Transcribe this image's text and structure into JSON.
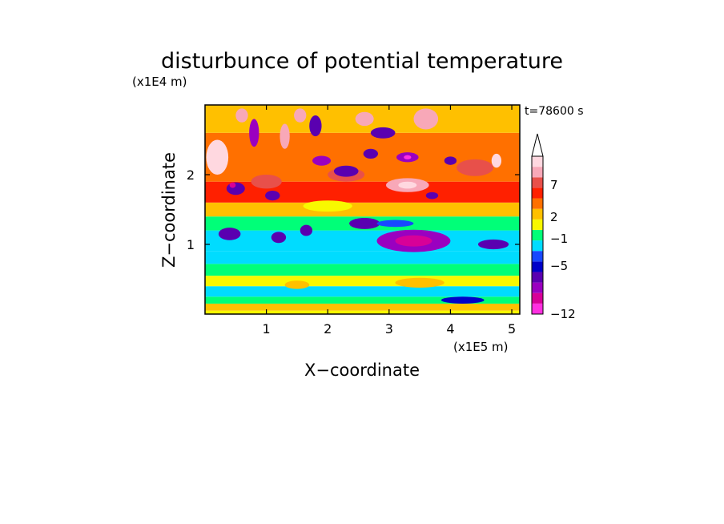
{
  "chart_data": {
    "type": "heatmap",
    "title": "disturbunce of potential temperature",
    "time_label": "t=78600 s",
    "xlabel": "X−coordinate",
    "ylabel": "Z−coordinate",
    "x_unit": "(x1E5 m)",
    "y_unit": "(x1E4 m)",
    "xlim": [
      0,
      5.13
    ],
    "ylim": [
      0,
      3.0
    ],
    "x_ticks": [
      "1",
      "2",
      "3",
      "4",
      "5"
    ],
    "y_ticks": [
      "1",
      "2"
    ],
    "colorbar": {
      "labels": [
        "7",
        "2",
        "−1",
        "−5",
        "−12"
      ],
      "colors": [
        "#ff30e0",
        "#d80098",
        "#9a00c0",
        "#5a00b0",
        "#0000c8",
        "#1848ff",
        "#00dcff",
        "#00ff78",
        "#f8f800",
        "#ffc000",
        "#ff7000",
        "#ff2000",
        "#e8504a",
        "#f8a8b8",
        "#ffd8e0"
      ],
      "extend": "max"
    },
    "bands": [
      {
        "z": [
          0.0,
          0.05
        ],
        "value": 1.0
      },
      {
        "z": [
          0.05,
          0.15
        ],
        "value": 2.0
      },
      {
        "z": [
          0.15,
          0.25
        ],
        "value": 0.0
      },
      {
        "z": [
          0.25,
          0.4
        ],
        "value": -1.5
      },
      {
        "z": [
          0.4,
          0.55
        ],
        "value": 1.0
      },
      {
        "z": [
          0.55,
          0.72
        ],
        "value": 0.0
      },
      {
        "z": [
          0.72,
          0.9
        ],
        "value": -1.0
      },
      {
        "z": [
          0.9,
          1.2
        ],
        "value": -1.5
      },
      {
        "z": [
          1.2,
          1.4
        ],
        "value": 0.0
      },
      {
        "z": [
          1.4,
          1.6
        ],
        "value": 2.0
      },
      {
        "z": [
          1.6,
          1.9
        ],
        "value": 3.5
      },
      {
        "z": [
          1.9,
          2.6
        ],
        "value": 3.0
      },
      {
        "z": [
          2.6,
          3.0
        ],
        "value": 2.0
      }
    ],
    "features": [
      {
        "x": 3.4,
        "z": 1.05,
        "rx": 0.6,
        "rz": 0.16,
        "value": -5.5
      },
      {
        "x": 3.4,
        "z": 1.05,
        "rx": 0.3,
        "rz": 0.08,
        "value": -6.5
      },
      {
        "x": 0.4,
        "z": 1.15,
        "rx": 0.18,
        "rz": 0.09,
        "value": -4.0
      },
      {
        "x": 1.2,
        "z": 1.1,
        "rx": 0.12,
        "rz": 0.08,
        "value": -4.0
      },
      {
        "x": 1.65,
        "z": 1.2,
        "rx": 0.1,
        "rz": 0.08,
        "value": -4.0
      },
      {
        "x": 2.6,
        "z": 1.3,
        "rx": 0.25,
        "rz": 0.08,
        "value": -4.0
      },
      {
        "x": 4.7,
        "z": 1.0,
        "rx": 0.25,
        "rz": 0.07,
        "value": -4.0
      },
      {
        "x": 2.0,
        "z": 1.55,
        "rx": 0.4,
        "rz": 0.08,
        "value": 1.0
      },
      {
        "x": 3.1,
        "z": 1.3,
        "rx": 0.3,
        "rz": 0.05,
        "value": -2.0
      },
      {
        "x": 3.5,
        "z": 0.45,
        "rx": 0.4,
        "rz": 0.07,
        "value": 1.5
      },
      {
        "x": 1.5,
        "z": 0.42,
        "rx": 0.2,
        "rz": 0.06,
        "value": 2.0
      },
      {
        "x": 4.2,
        "z": 0.2,
        "rx": 0.35,
        "rz": 0.05,
        "value": -3.0
      },
      {
        "x": 0.2,
        "z": 2.25,
        "rx": 0.18,
        "rz": 0.25,
        "value": 6.5
      },
      {
        "x": 0.12,
        "z": 2.15,
        "rx": 0.08,
        "rz": 0.08,
        "value": 7.5
      },
      {
        "x": 3.3,
        "z": 1.85,
        "rx": 0.35,
        "rz": 0.1,
        "value": 6.0
      },
      {
        "x": 3.3,
        "z": 1.85,
        "rx": 0.15,
        "rz": 0.05,
        "value": 7.5
      },
      {
        "x": 4.4,
        "z": 2.1,
        "rx": 0.3,
        "rz": 0.12,
        "value": 5.0
      },
      {
        "x": 2.3,
        "z": 2.0,
        "rx": 0.3,
        "rz": 0.1,
        "value": 5.0
      },
      {
        "x": 1.0,
        "z": 1.9,
        "rx": 0.25,
        "rz": 0.1,
        "value": 5.0
      },
      {
        "x": 0.5,
        "z": 1.8,
        "rx": 0.15,
        "rz": 0.09,
        "value": -4.5
      },
      {
        "x": 1.1,
        "z": 1.7,
        "rx": 0.12,
        "rz": 0.07,
        "value": -4.0
      },
      {
        "x": 0.45,
        "z": 1.85,
        "rx": 0.05,
        "rz": 0.04,
        "value": -6.5
      },
      {
        "x": 2.3,
        "z": 2.05,
        "rx": 0.2,
        "rz": 0.08,
        "value": -4.5
      },
      {
        "x": 1.9,
        "z": 2.2,
        "rx": 0.15,
        "rz": 0.07,
        "value": -5.0
      },
      {
        "x": 2.7,
        "z": 2.3,
        "rx": 0.12,
        "rz": 0.07,
        "value": -4.5
      },
      {
        "x": 3.3,
        "z": 2.25,
        "rx": 0.18,
        "rz": 0.07,
        "value": -5.0
      },
      {
        "x": 3.3,
        "z": 2.25,
        "rx": 0.06,
        "rz": 0.03,
        "value": -8.0
      },
      {
        "x": 4.0,
        "z": 2.2,
        "rx": 0.1,
        "rz": 0.06,
        "value": -4.0
      },
      {
        "x": 3.7,
        "z": 1.7,
        "rx": 0.1,
        "rz": 0.05,
        "value": -4.0
      },
      {
        "x": 0.8,
        "z": 2.6,
        "rx": 0.08,
        "rz": 0.2,
        "value": -5.0
      },
      {
        "x": 1.8,
        "z": 2.7,
        "rx": 0.1,
        "rz": 0.15,
        "value": -4.0
      },
      {
        "x": 2.9,
        "z": 2.6,
        "rx": 0.2,
        "rz": 0.08,
        "value": -4.0
      },
      {
        "x": 1.3,
        "z": 2.55,
        "rx": 0.08,
        "rz": 0.18,
        "value": 6.0
      },
      {
        "x": 3.6,
        "z": 2.8,
        "rx": 0.2,
        "rz": 0.15,
        "value": 6.0
      },
      {
        "x": 4.75,
        "z": 2.2,
        "rx": 0.08,
        "rz": 0.1,
        "value": 6.5
      },
      {
        "x": 2.6,
        "z": 2.8,
        "rx": 0.15,
        "rz": 0.1,
        "value": 5.5
      },
      {
        "x": 1.55,
        "z": 2.85,
        "rx": 0.1,
        "rz": 0.1,
        "value": 6.0
      },
      {
        "x": 0.6,
        "z": 2.85,
        "rx": 0.1,
        "rz": 0.1,
        "value": 5.5
      }
    ]
  }
}
